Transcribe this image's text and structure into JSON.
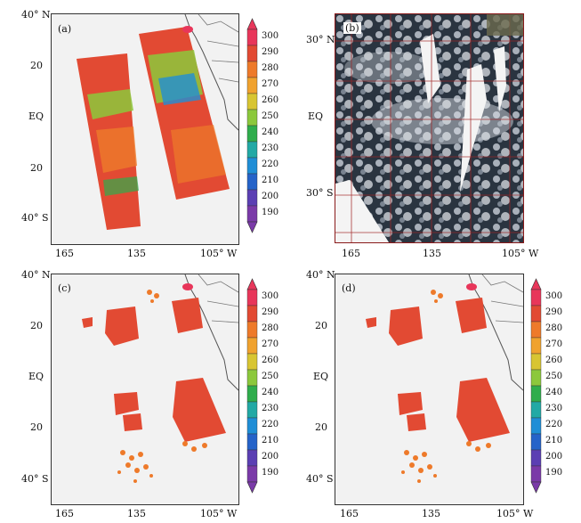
{
  "colorbar": {
    "ticks": [
      "300",
      "290",
      "280",
      "270",
      "260",
      "250",
      "240",
      "230",
      "220",
      "210",
      "200",
      "190"
    ],
    "colors": [
      "#e8365a",
      "#e24a33",
      "#ee7a2a",
      "#f0a22e",
      "#d8c532",
      "#8cc83c",
      "#2fad4c",
      "#22a9a5",
      "#1f8ed6",
      "#2563c9",
      "#5b3fb3",
      "#7a3aa8"
    ]
  },
  "panels": {
    "a": {
      "label": "(a)",
      "ylabels": [
        "40° N",
        "20",
        "EQ",
        "20",
        "40° S"
      ],
      "xlabels": [
        "165",
        "135",
        "105° W"
      ]
    },
    "b": {
      "label": "(b)",
      "ylabels": [
        "30° N",
        "EQ",
        "30° S"
      ],
      "xlabels": [
        "165",
        "135",
        "105° W"
      ]
    },
    "c": {
      "label": "(c)",
      "ylabels": [
        "40° N",
        "20",
        "EQ",
        "20",
        "40° S"
      ],
      "xlabels": [
        "165",
        "135",
        "105° W"
      ]
    },
    "d": {
      "label": "(d)",
      "ylabels": [
        "40° N",
        "20",
        "EQ",
        "20",
        "40° S"
      ],
      "xlabels": [
        "165",
        "135",
        "105° W"
      ]
    }
  }
}
